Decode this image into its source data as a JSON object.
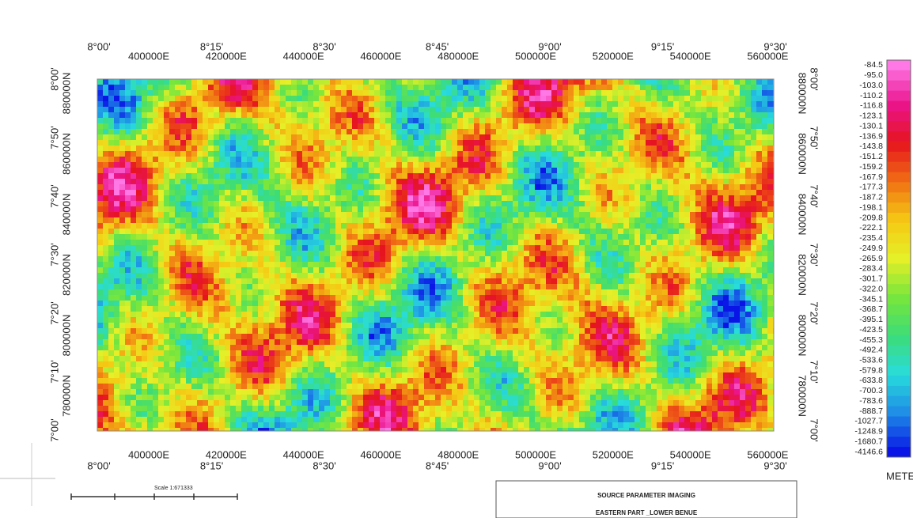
{
  "map": {
    "deg_x": [
      "8°00'",
      "8°15'",
      "8°30'",
      "8°45'",
      "9°00'",
      "9°15'",
      "9°30'"
    ],
    "utm_x": [
      "400000E",
      "420000E",
      "440000E",
      "460000E",
      "480000E",
      "500000E",
      "520000E",
      "540000E",
      "560000E"
    ],
    "deg_y": [
      "8°00'",
      "7°50'",
      "7°40'",
      "7°30'",
      "7°20'",
      "7°10'",
      "7°00'"
    ],
    "utm_y": [
      "880000N",
      "860000N",
      "840000N",
      "820000N",
      "800000N",
      "780000N"
    ]
  },
  "legend": {
    "labels": [
      "-84.5",
      "-95.0",
      "-103.0",
      "-110.2",
      "-116.8",
      "-123.1",
      "-130.1",
      "-136.9",
      "-143.8",
      "-151.2",
      "-159.2",
      "-167.9",
      "-177.3",
      "-187.2",
      "-198.1",
      "-209.8",
      "-222.1",
      "-235.4",
      "-249.9",
      "-265.9",
      "-283.4",
      "-301.7",
      "-322.0",
      "-345.1",
      "-368.7",
      "-395.1",
      "-423.5",
      "-455.3",
      "-492.4",
      "-533.6",
      "-579.8",
      "-633.8",
      "-700.3",
      "-783.6",
      "-888.7",
      "-1027.7",
      "-1248.9",
      "-1680.7",
      "-4146.6"
    ],
    "unit": "METERS"
  },
  "scale": {
    "text": "Scale 1:671333"
  },
  "title_box": {
    "line1": "SOURCE PARAMETER IMAGING",
    "line2": "EASTERN PART _LOWER BENUE"
  }
}
